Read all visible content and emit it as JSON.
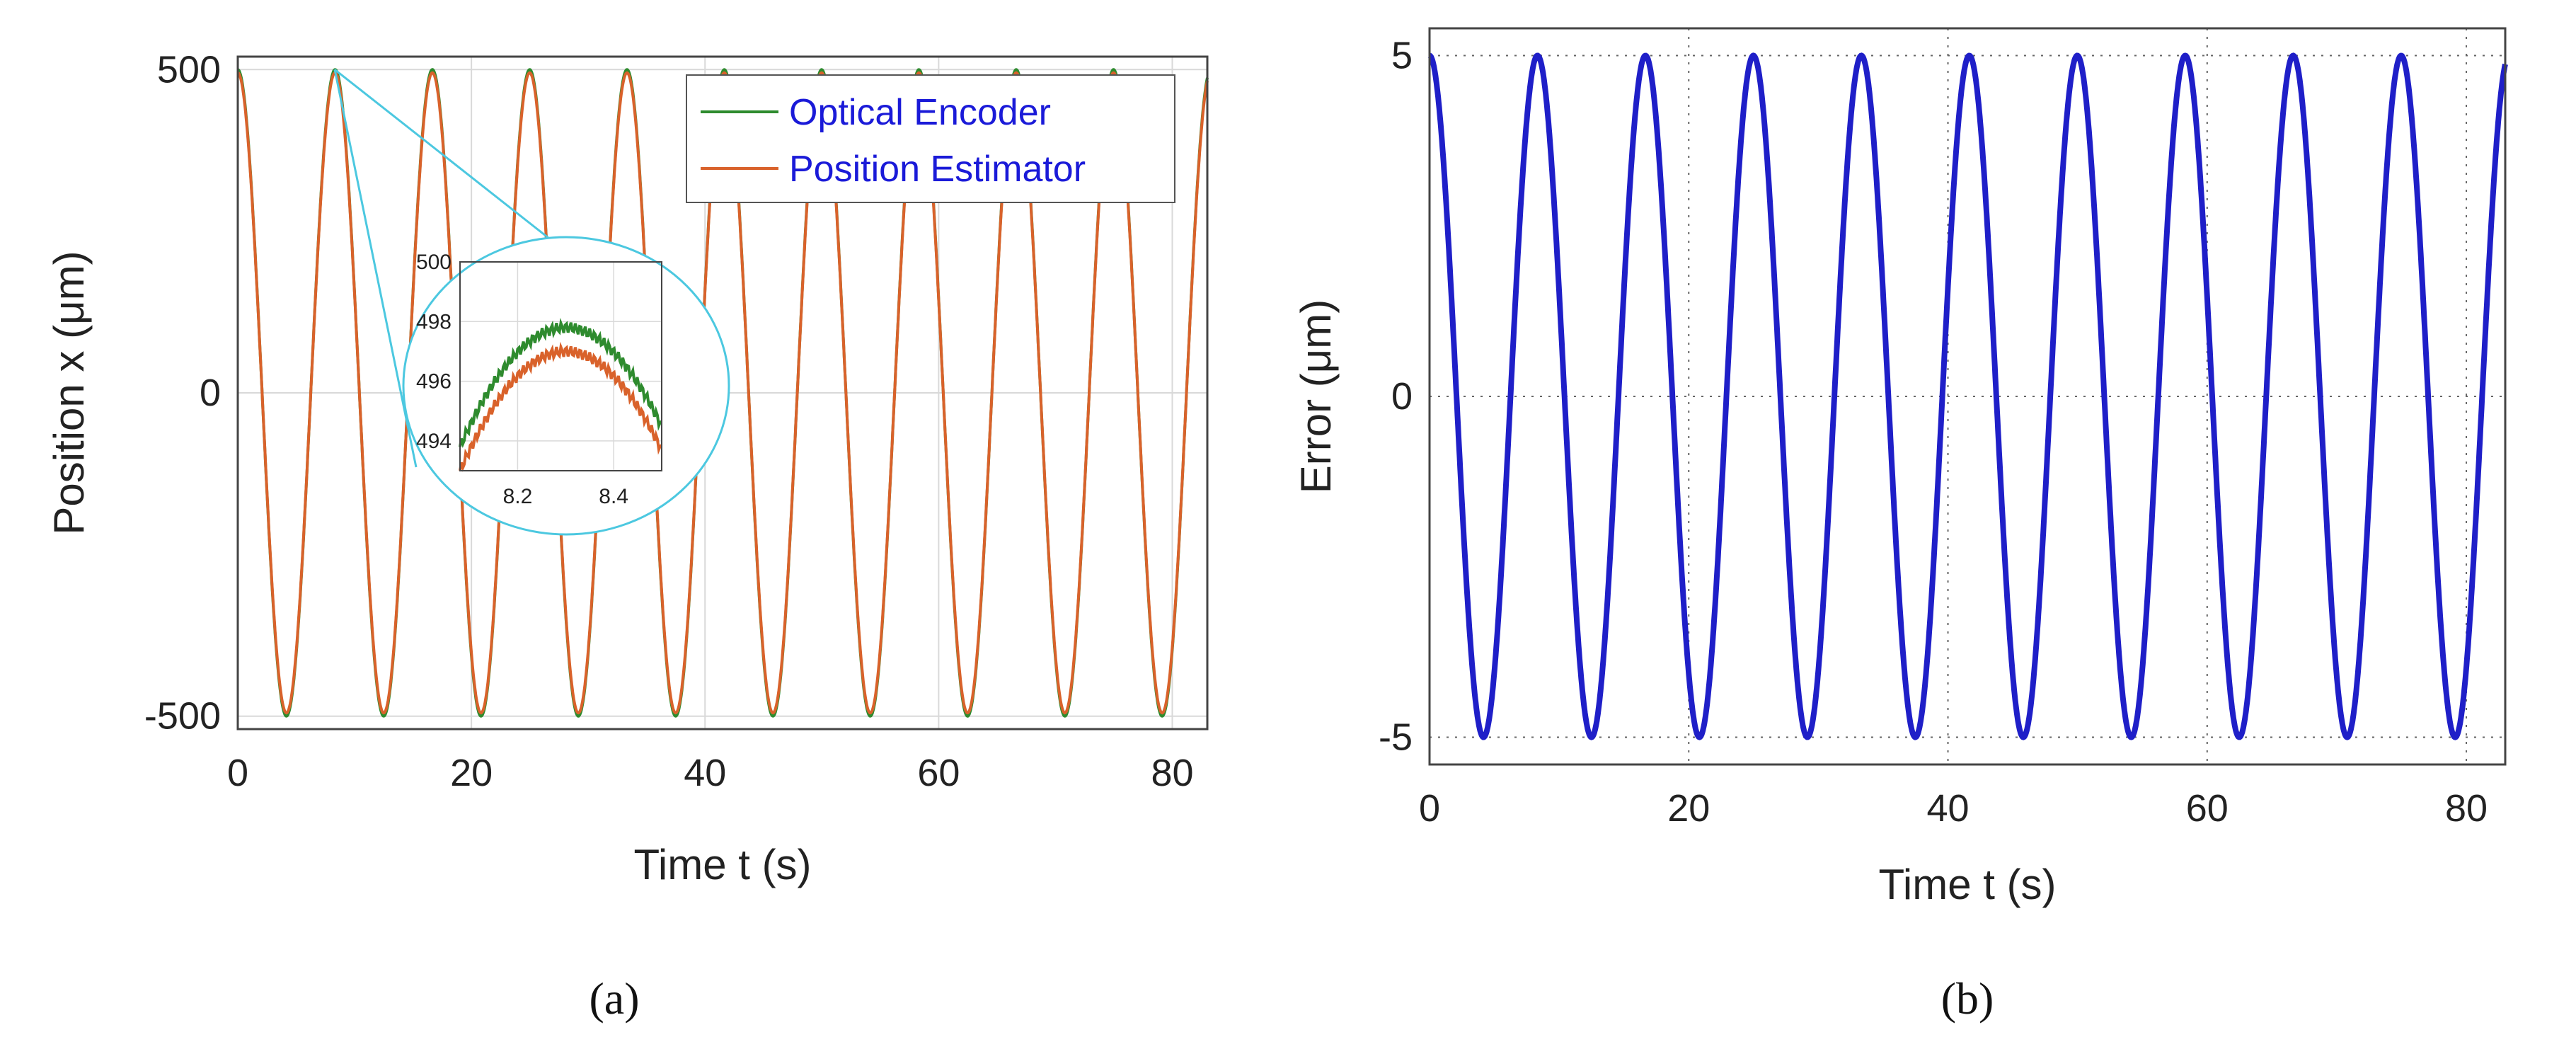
{
  "colors": {
    "encoder": "#2e8b2e",
    "estimator": "#d9622b",
    "error": "#1f1fc8",
    "legend_text": "#1a1ad8",
    "zoom_outline": "#4cc8e0",
    "grid": "#d9d9d9",
    "grid_dotted": "#666666"
  },
  "panel_labels": {
    "a": "(a)",
    "b": "(b)"
  },
  "chart_data": [
    {
      "id": "a",
      "type": "line",
      "xlabel": "Time t (s)",
      "ylabel": "Position x (μm)",
      "xlim": [
        0,
        83
      ],
      "ylim": [
        -520,
        520
      ],
      "xticks": [
        0,
        20,
        40,
        60,
        80
      ],
      "xtick_labels": [
        "0",
        "20",
        "40",
        "60",
        "80"
      ],
      "yticks": [
        -500,
        0,
        500
      ],
      "ytick_labels": [
        "-500",
        "0",
        "500"
      ],
      "grid": true,
      "legend_position": "top-right",
      "series": [
        {
          "name": "Optical Encoder",
          "function": "500·cos(2πt/8.33)",
          "amplitude": 500,
          "period_s": 8.33
        },
        {
          "name": "Position Estimator",
          "function": "495·cos(2πt/8.33)",
          "amplitude": 495,
          "period_s": 8.33
        }
      ],
      "inset": {
        "xlim": [
          8.08,
          8.5
        ],
        "ylim": [
          493,
          500
        ],
        "xticks": [
          8.2,
          8.4
        ],
        "xtick_labels": [
          "8.2",
          "8.4"
        ],
        "yticks": [
          494,
          496,
          498,
          500
        ],
        "ytick_labels": [
          "494",
          "496",
          "498",
          "500"
        ],
        "zoom_point": {
          "x": 8.3,
          "y": 500
        }
      }
    },
    {
      "id": "b",
      "type": "line",
      "xlabel": "Time t (s)",
      "ylabel": "Error (μm)",
      "xlim": [
        0,
        83
      ],
      "ylim": [
        -5.4,
        5.4
      ],
      "xticks": [
        0,
        20,
        40,
        60,
        80
      ],
      "xtick_labels": [
        "0",
        "20",
        "40",
        "60",
        "80"
      ],
      "yticks": [
        -5,
        0,
        5
      ],
      "ytick_labels": [
        "-5",
        "0",
        "5"
      ],
      "grid": true,
      "grid_style": "dotted",
      "series": [
        {
          "function": "5·cos(2πt/8.33)",
          "amplitude": 5,
          "period_s": 8.33
        }
      ]
    }
  ]
}
